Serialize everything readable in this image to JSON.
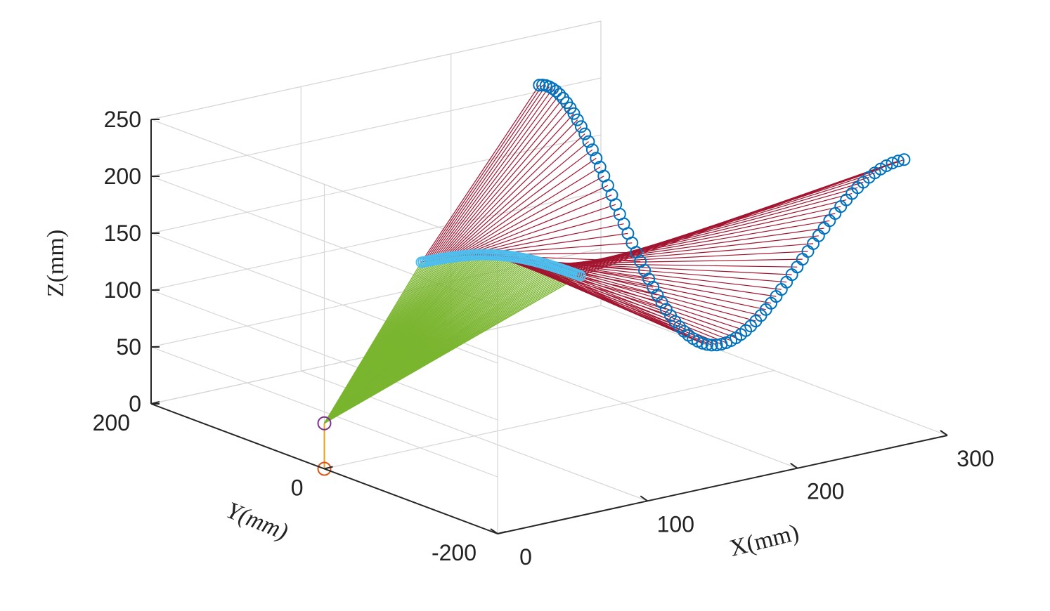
{
  "chart_data": {
    "type": "3d-line",
    "xlabel": "X(mm)",
    "ylabel": "Y(mm)",
    "zlabel": "Z(mm)",
    "xlim": [
      0,
      300
    ],
    "ylim": [
      -200,
      200
    ],
    "zlim": [
      0,
      250
    ],
    "x_ticks": [
      "0",
      "100",
      "200",
      "300"
    ],
    "y_ticks": [
      "-200",
      "0",
      "200"
    ],
    "z_ticks": [
      "0",
      "50",
      "100",
      "150",
      "200",
      "250"
    ],
    "grid": true,
    "colors": {
      "base_link": "#e8a317",
      "link1": "#7ab52f",
      "link2": "#a2142f",
      "elbow_marker": "#4dbeee",
      "end_effector_marker": "#0072bd",
      "base_marker": "#d95319",
      "shoulder_marker": "#7e2f8e"
    },
    "base": {
      "x": 0,
      "y": 0,
      "z": 0
    },
    "shoulder": {
      "x": 0,
      "y": 0,
      "z": 40
    },
    "elbow_path": {
      "description_points": "elbow joint positions along trajectory",
      "start": {
        "x": 30,
        "y": -60,
        "z": 190
      },
      "end": {
        "x": 165,
        "y": -10,
        "z": 125
      }
    },
    "end_effector_path": {
      "shape": "sinusoid",
      "x_range": [
        230,
        300
      ],
      "y_range": [
        -150,
        150
      ],
      "z_range": [
        40,
        230
      ]
    },
    "frames": 80
  }
}
